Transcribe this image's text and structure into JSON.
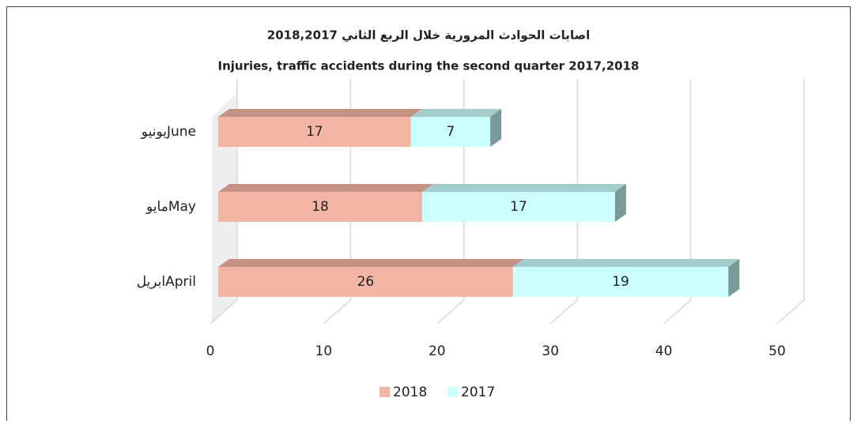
{
  "chart_data": {
    "type": "bar",
    "orientation": "horizontal",
    "stacked": true,
    "title": "اصابات الحوادث المرورية خلال الربع الثاني 2018,2017",
    "subtitle": "Injuries, traffic accidents during the second quarter 2017,2018",
    "categories": [
      "يونيوJune",
      "مايوMay",
      "ابريلApril"
    ],
    "series": [
      {
        "name": "2018",
        "color": "#f4b6a4",
        "values": [
          17,
          18,
          26
        ]
      },
      {
        "name": "2017",
        "color": "#ccffff",
        "values": [
          7,
          17,
          19
        ]
      }
    ],
    "xlim": [
      0,
      50
    ],
    "xticks": [
      0,
      10,
      20,
      30,
      40,
      50
    ],
    "grid": true,
    "legend": "bottom"
  }
}
